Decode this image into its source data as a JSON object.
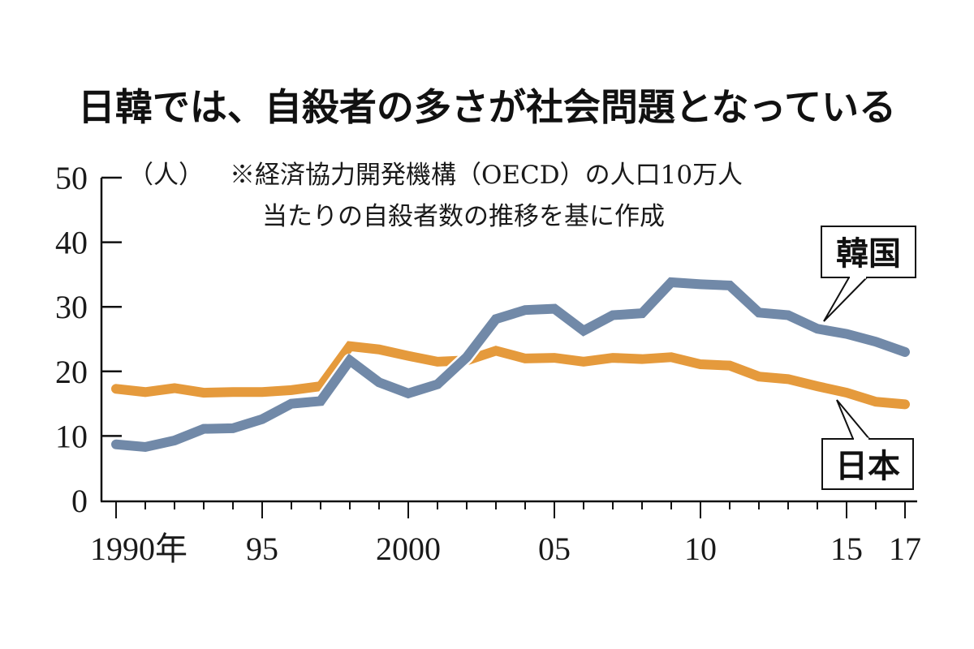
{
  "chart_data": {
    "type": "line",
    "title": "日韓では、自殺者の多さが社会問題となっている",
    "unit_label": "（人）",
    "note_lines": [
      "※経済協力開発機構（OECD）の人口10万人",
      "当たりの自殺者数の推移を基に作成"
    ],
    "xlabel": "",
    "ylabel": "（人）",
    "ylim": [
      0,
      50
    ],
    "xlim": [
      1990,
      2017
    ],
    "y_ticks": [
      0,
      10,
      20,
      30,
      40,
      50
    ],
    "y_tick_labels": [
      "0",
      "10",
      "20",
      "30",
      "40",
      "50"
    ],
    "x_major_ticks": [
      1990,
      1995,
      2000,
      2005,
      2010,
      2015,
      2017
    ],
    "x_tick_labels": [
      "1990年",
      "95",
      "2000",
      "05",
      "10",
      "15",
      "17"
    ],
    "grid": false,
    "x": [
      1990,
      1991,
      1992,
      1993,
      1994,
      1995,
      1996,
      1997,
      1998,
      1999,
      2000,
      2001,
      2002,
      2003,
      2004,
      2005,
      2006,
      2007,
      2008,
      2009,
      2010,
      2011,
      2012,
      2013,
      2014,
      2015,
      2016,
      2017
    ],
    "series": [
      {
        "name": "韓国",
        "color": "#7189A8",
        "values": [
          8.7,
          8.3,
          9.3,
          11.1,
          11.2,
          12.6,
          15.0,
          15.4,
          21.7,
          18.3,
          16.6,
          18.0,
          22.2,
          28.1,
          29.5,
          29.7,
          26.3,
          28.7,
          29.0,
          33.8,
          33.5,
          33.3,
          29.1,
          28.7,
          26.6,
          25.8,
          24.6,
          23.0
        ]
      },
      {
        "name": "日本",
        "color": "#E59A3C",
        "values": [
          17.3,
          16.8,
          17.4,
          16.7,
          16.8,
          16.8,
          17.1,
          17.7,
          23.9,
          23.4,
          22.4,
          21.5,
          21.7,
          23.2,
          22.0,
          22.1,
          21.5,
          22.1,
          21.9,
          22.2,
          21.1,
          20.9,
          19.2,
          18.8,
          17.7,
          16.7,
          15.3,
          14.9
        ]
      }
    ],
    "legend": [
      {
        "label": "韓国",
        "placement": "upper-right, callout to line"
      },
      {
        "label": "日本",
        "placement": "lower-right, callout to line"
      }
    ]
  }
}
